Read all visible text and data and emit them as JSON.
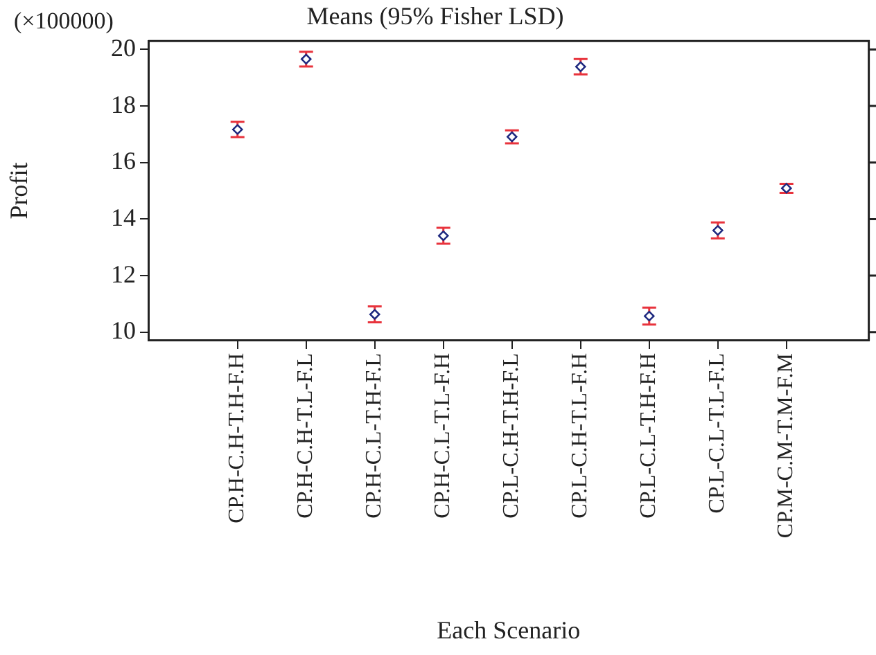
{
  "chart_data": {
    "type": "scatter",
    "title": "Means (95% Fisher LSD)",
    "xlabel": "Each Scenario",
    "ylabel": "Profit",
    "annotations": [
      "(×100000)"
    ],
    "categories": [
      "CP.H-C.H-T.H-F.H",
      "CP.H-C.H-T.L-F.L",
      "CP.H-C.L-T.H-F.L",
      "CP.H-C.L-T.L-F.H",
      "CP.L-C.H-T.H-F.L",
      "CP.L-C.H-T.L-F.H",
      "CP.L-C.L-T.H-F.H",
      "CP.L-C.L-T.L-F.L",
      "CP.M-C.M-T.M-F.M"
    ],
    "series": [
      {
        "color": "#1f2a80",
        "values": [
          17.17,
          19.66,
          10.63,
          13.41,
          16.91,
          19.39,
          10.57,
          13.6,
          15.09
        ],
        "errors": [
          0.27,
          0.26,
          0.28,
          0.28,
          0.23,
          0.27,
          0.3,
          0.28,
          0.16
        ]
      }
    ],
    "ylim": [
      9.7,
      20.3
    ],
    "yticks": [
      10,
      12,
      14,
      16,
      18,
      20
    ],
    "grid": false,
    "legend": false,
    "marker": "diamond"
  }
}
